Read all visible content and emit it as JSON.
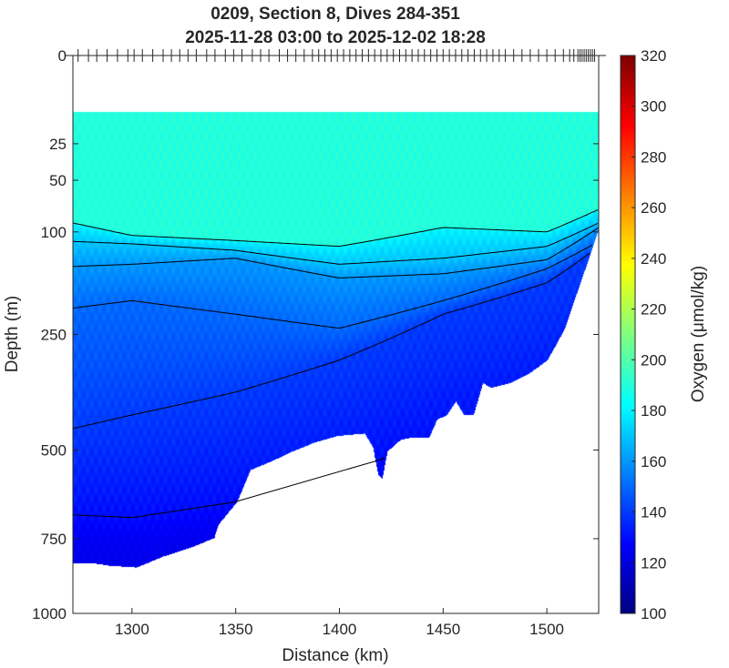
{
  "chart_data": {
    "type": "heatmap",
    "subtype": "filled-contour section",
    "title": "0209, Section 8, Dives 284-351",
    "subtitle": "2025-11-28 03:00 to 2025-12-02 18:28",
    "xlabel": "Distance (km)",
    "ylabel": "Depth (m)",
    "colorbar_label": "Oxygen (μmol/kg)",
    "xlim": [
      1271.5,
      1525
    ],
    "ylim": [
      0,
      1000
    ],
    "y_scale": "sqrt",
    "clim": [
      100,
      320
    ],
    "colormap": "jet",
    "xticks": [
      1300,
      1350,
      1400,
      1450,
      1500
    ],
    "xtick_labels": [
      "1300",
      "1350",
      "1400",
      "1450",
      "1500"
    ],
    "yticks": [
      0,
      25,
      50,
      100,
      250,
      500,
      750,
      1000
    ],
    "ytick_labels": [
      "0",
      "25",
      "50",
      "100",
      "250",
      "500",
      "750",
      "1000"
    ],
    "cticks": [
      100,
      120,
      140,
      160,
      180,
      200,
      220,
      240,
      260,
      280,
      300,
      320
    ],
    "ctick_labels": [
      "100",
      "120",
      "140",
      "160",
      "180",
      "200",
      "220",
      "240",
      "260",
      "280",
      "300",
      "320"
    ],
    "data_top_depth": 10,
    "surface_value": 190,
    "deep_value": 122,
    "dive_distances": [
      1274,
      1279,
      1283,
      1288,
      1293,
      1298,
      1301,
      1305,
      1310,
      1315,
      1319,
      1323,
      1327,
      1331,
      1336,
      1340,
      1345,
      1349,
      1353,
      1358,
      1362,
      1366,
      1371,
      1375,
      1379,
      1383,
      1387,
      1390,
      1393,
      1396,
      1399,
      1402,
      1405,
      1408,
      1411,
      1414,
      1417,
      1420,
      1423,
      1426,
      1429,
      1432,
      1435,
      1438,
      1441,
      1444,
      1447,
      1450,
      1453,
      1456,
      1459,
      1462,
      1465,
      1468,
      1471,
      1474,
      1477,
      1480,
      1484,
      1488,
      1492,
      1496,
      1500,
      1504,
      1508,
      1511,
      1513,
      1515,
      1516,
      1517,
      1518,
      1519,
      1520,
      1521,
      1522,
      1523
    ],
    "bottom_profile": [
      [
        1271.5,
        826
      ],
      [
        1280,
        826
      ],
      [
        1289,
        835
      ],
      [
        1302,
        841
      ],
      [
        1315,
        805
      ],
      [
        1328.5,
        776
      ],
      [
        1339.5,
        747
      ],
      [
        1341.5,
        706
      ],
      [
        1350.5,
        639
      ],
      [
        1357,
        551
      ],
      [
        1368,
        526
      ],
      [
        1377,
        503
      ],
      [
        1388,
        480
      ],
      [
        1399,
        464
      ],
      [
        1412,
        458
      ],
      [
        1416,
        492
      ],
      [
        1418.5,
        563
      ],
      [
        1420.5,
        575
      ],
      [
        1423,
        503
      ],
      [
        1429.5,
        473
      ],
      [
        1434,
        469
      ],
      [
        1443,
        469
      ],
      [
        1447,
        425
      ],
      [
        1451.5,
        415
      ],
      [
        1456,
        384
      ],
      [
        1460,
        415
      ],
      [
        1464.5,
        415
      ],
      [
        1469,
        344
      ],
      [
        1473,
        354
      ],
      [
        1482,
        344
      ],
      [
        1491,
        325
      ],
      [
        1500,
        298
      ],
      [
        1508.5,
        239
      ],
      [
        1513,
        193
      ],
      [
        1517.5,
        153
      ],
      [
        1522,
        117
      ],
      [
        1525,
        95
      ]
    ],
    "contour_x": [
      1271.5,
      1300,
      1350,
      1400,
      1450,
      1500,
      1525
    ],
    "contours": [
      {
        "level": 180,
        "depths": [
          90,
          104,
          110,
          117,
          95,
          100,
          76
        ]
      },
      {
        "level": 170,
        "depths": [
          111,
          114,
          122,
          140,
          132,
          117,
          90
        ]
      },
      {
        "level": 160,
        "depths": [
          143,
          140,
          132,
          159,
          153,
          134,
          95
        ]
      },
      {
        "level": 150,
        "depths": [
          205,
          193,
          215,
          239,
          193,
          146,
          111
        ]
      },
      {
        "level": 140,
        "depths": [
          447,
          415,
          364,
          298,
          215,
          166,
          117
        ]
      },
      {
        "level": 130,
        "depths": [
          678,
          686,
          640,
          560,
          470,
          380,
          300
        ]
      }
    ]
  }
}
